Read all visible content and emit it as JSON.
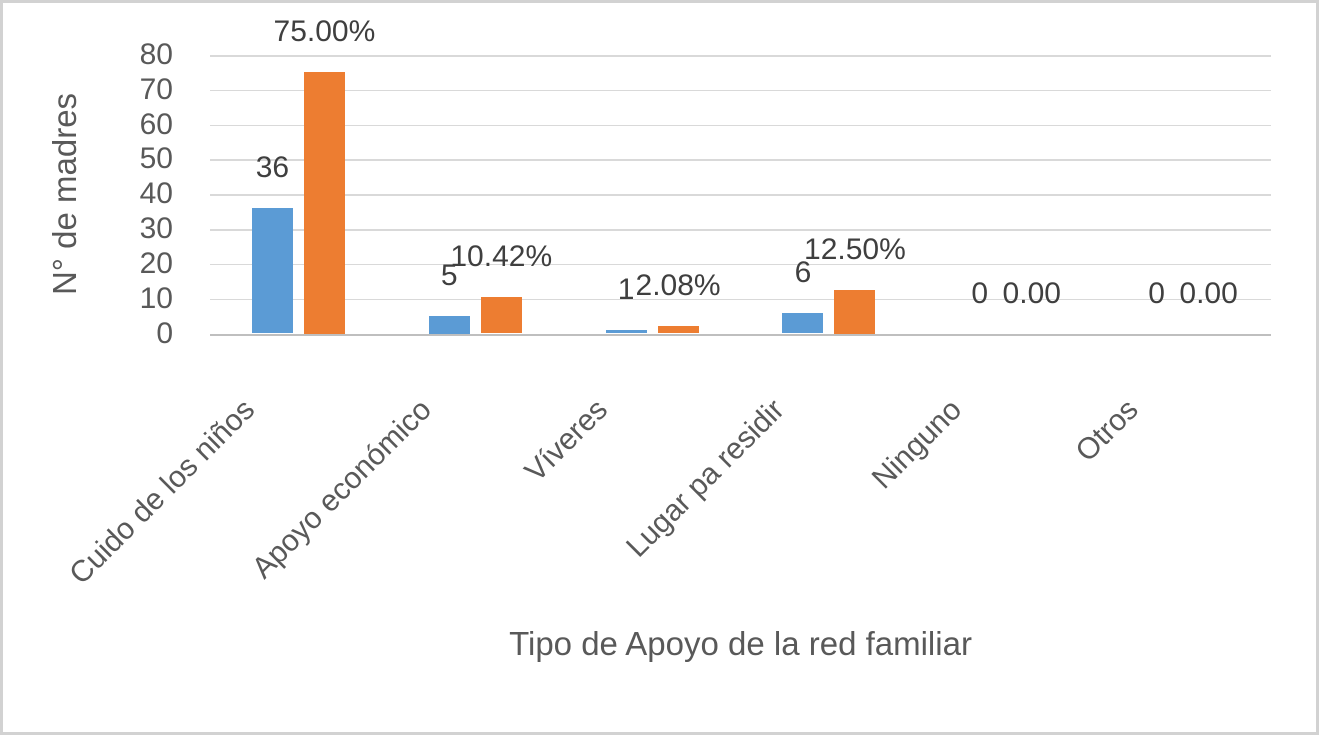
{
  "chart_data": {
    "type": "bar",
    "title": "",
    "xlabel": "Tipo de Apoyo de la red familiar",
    "ylabel": "N° de madres",
    "categories": [
      "Cuido de los niños",
      "Apoyo económico",
      "Víveres",
      "Lugar pa residir",
      "Ninguno",
      "Otros"
    ],
    "series": [
      {
        "name": "count",
        "color": "#5B9BD5",
        "values": [
          36,
          5,
          1,
          6,
          0,
          0
        ],
        "data_labels": [
          "36",
          "5",
          "1",
          "6",
          "0",
          "0"
        ]
      },
      {
        "name": "percent",
        "color": "#ED7D31",
        "values": [
          75,
          10.42,
          2.08,
          12.5,
          0,
          0
        ],
        "data_labels": [
          "75.00%",
          "10.42%",
          "2.08%",
          "12.50%",
          "0.00",
          "0.00"
        ]
      }
    ],
    "ylim": [
      0,
      80
    ],
    "yticks": [
      "0",
      "10",
      "20",
      "30",
      "40",
      "50",
      "60",
      "70",
      "80"
    ],
    "grid": "horizontal",
    "legend": "none",
    "grid_color": "#D9D9D9",
    "axis_color": "#BFBFBF"
  }
}
